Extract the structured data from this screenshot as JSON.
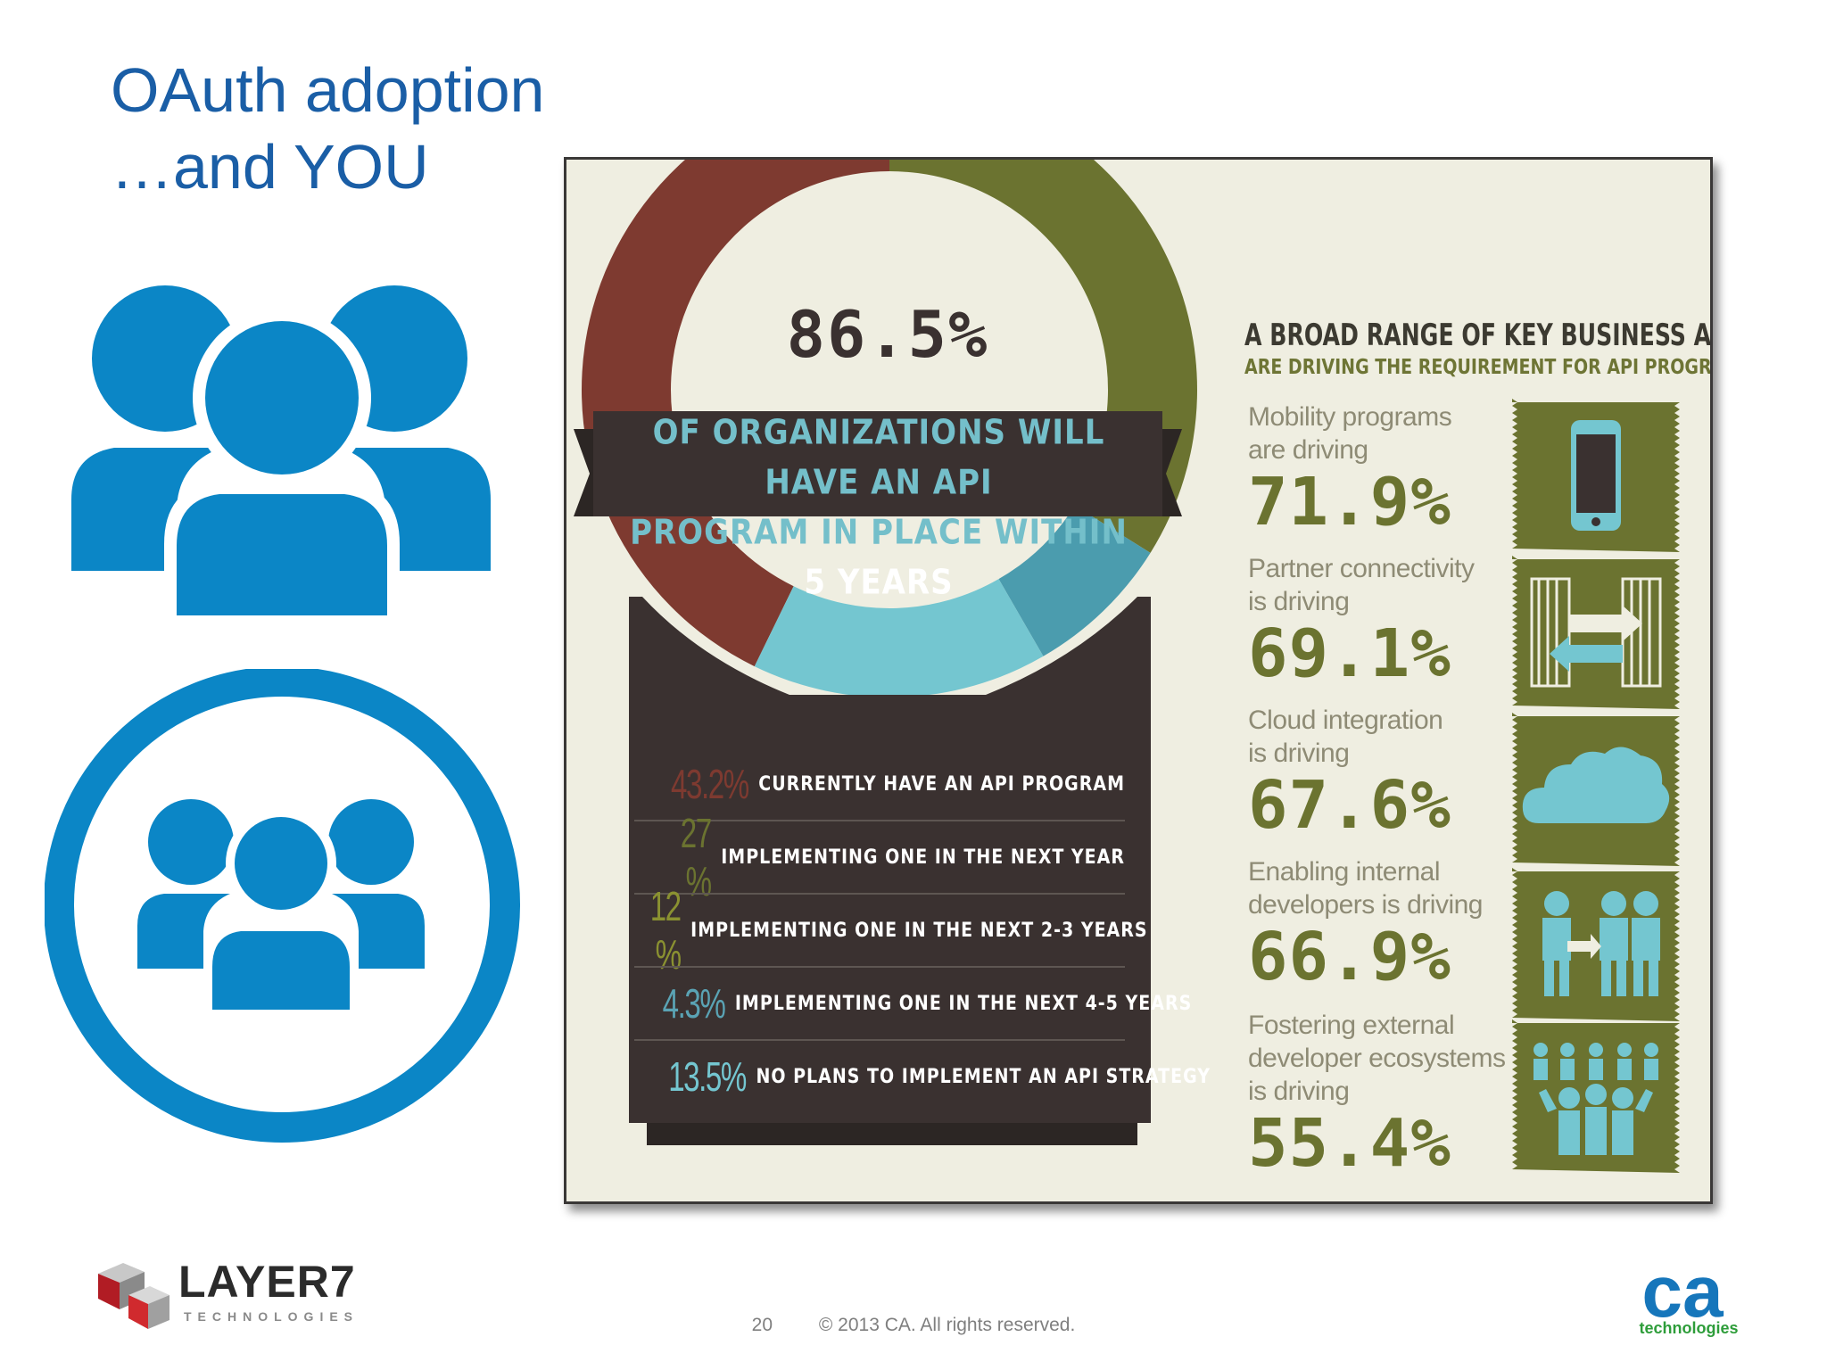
{
  "slide": {
    "title_line1": "OAuth adoption",
    "title_line2": "…and YOU",
    "page_number": "20",
    "copyright": "© 2013 CA. All rights reserved."
  },
  "colors": {
    "title_blue": "#1a5ea6",
    "icon_blue": "#0b86c6",
    "dark_brown": "#3a3130",
    "red_brown": "#7e3a30",
    "olive": "#6b7330",
    "cyan": "#74c6d0",
    "teal": "#4b9cae",
    "panel_bg": "#efeee1"
  },
  "icons": {
    "group": "group-people-icon",
    "group_circle": "group-in-circle-icon",
    "phone": "mobile-phone-icon",
    "doors": "partner-doors-arrows-icon",
    "cloud": "cloud-icon",
    "devs": "internal-developers-icon",
    "crowd": "developer-ecosystem-crowd-icon"
  },
  "infographic": {
    "headline_pct": "86.5%",
    "banner_line1": "OF ORGANIZATIONS WILL HAVE AN API",
    "banner_line2_prefix": "PROGRAM IN PLACE WITHIN",
    "banner_line2_highlight": "5 YEARS",
    "stats": [
      {
        "value": "43.2%",
        "label": "CURRENTLY HAVE AN API PROGRAM",
        "color": "#7e3a30"
      },
      {
        "value": "27 %",
        "label": "IMPLEMENTING ONE IN THE NEXT YEAR",
        "color": "#6b7330"
      },
      {
        "value": "12 %",
        "label": "IMPLEMENTING ONE IN THE NEXT 2-3 YEARS",
        "color": "#8a9131"
      },
      {
        "value": "4.3%",
        "label": "IMPLEMENTING ONE IN THE NEXT 4-5 YEARS",
        "color": "#5aa3b4"
      },
      {
        "value": "13.5%",
        "label": "NO PLANS TO IMPLEMENT AN API STRATEGY",
        "color": "#74c6d0"
      }
    ],
    "aims_heading": "A BROAD RANGE OF KEY BUSINESS AIMS",
    "aims_subheading": "ARE DRIVING THE REQUIREMENT FOR API PROGRAMS",
    "aims": [
      {
        "line1": "Mobility programs",
        "line2": "are driving",
        "line3": "",
        "pct": "71.9%"
      },
      {
        "line1": "Partner connectivity",
        "line2": "is driving",
        "line3": "",
        "pct": "69.1%"
      },
      {
        "line1": "Cloud integration",
        "line2": "is driving",
        "line3": "",
        "pct": "67.6%"
      },
      {
        "line1": "Enabling internal",
        "line2": "developers is driving",
        "line3": "",
        "pct": "66.9%"
      },
      {
        "line1": "Fostering external",
        "line2": "developer ecosystems",
        "line3": "is driving",
        "pct": "55.4%"
      }
    ]
  },
  "logos": {
    "layer7_word": "LAYER7",
    "layer7_sub": "TECHNOLOGIES",
    "ca_word": "ca",
    "ca_sub": "technologies"
  }
}
